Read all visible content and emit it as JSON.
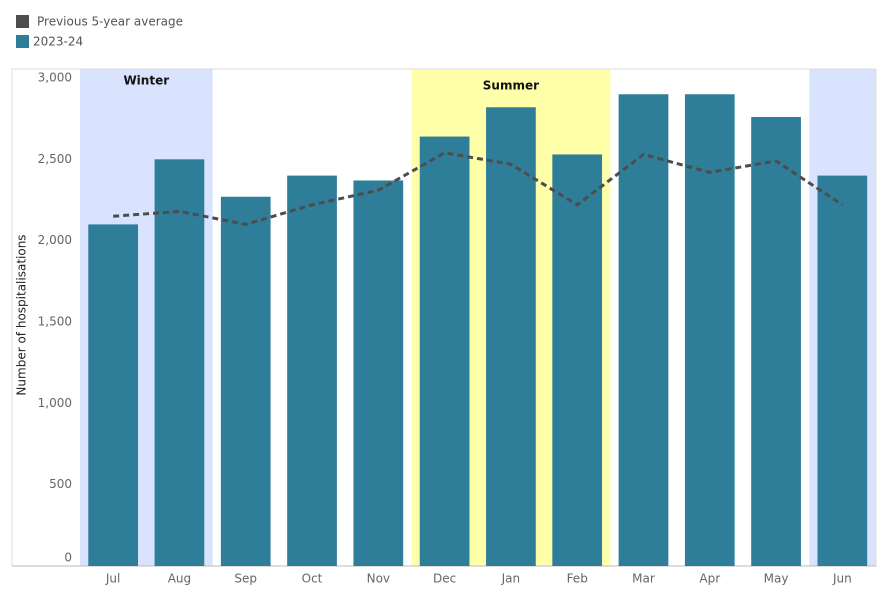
{
  "chart_data": {
    "type": "bar-line",
    "y_label": "Number of hospitalisations",
    "categories": [
      "Jul",
      "Aug",
      "Sep",
      "Oct",
      "Nov",
      "Dec",
      "Jan",
      "Feb",
      "Mar",
      "Apr",
      "May",
      "Jun"
    ],
    "series": [
      {
        "name": "Previous 5-year average",
        "type": "line",
        "color": "#4d4d4d",
        "dashed": true,
        "values": [
          2150,
          2180,
          2100,
          2220,
          2310,
          2540,
          2470,
          2220,
          2530,
          2420,
          2490,
          2220
        ]
      },
      {
        "name": "2023-24",
        "type": "bar",
        "color": "#2e7d99",
        "values": [
          2100,
          2500,
          2270,
          2400,
          2370,
          2640,
          2820,
          2530,
          2900,
          2900,
          2760,
          2400
        ]
      }
    ],
    "seasons": [
      {
        "label": "Winter",
        "color": "#d9e3fd",
        "categories": [
          "Jul",
          "Aug",
          "Jun"
        ]
      },
      {
        "label": "Summer",
        "color": "#ffffaa",
        "categories": [
          "Dec",
          "Jan",
          "Feb"
        ]
      }
    ],
    "ylim": [
      0,
      3000
    ],
    "yticks": [
      0,
      500,
      {
        "value": 1000,
        "label": "1,000"
      },
      {
        "value": 1500,
        "label": "1,500"
      },
      {
        "value": 2000,
        "label": "2,000"
      },
      {
        "value": 2500,
        "label": "2,500"
      },
      {
        "value": 3000,
        "label": "3,000"
      }
    ],
    "grid": false,
    "legend": "top-left"
  }
}
